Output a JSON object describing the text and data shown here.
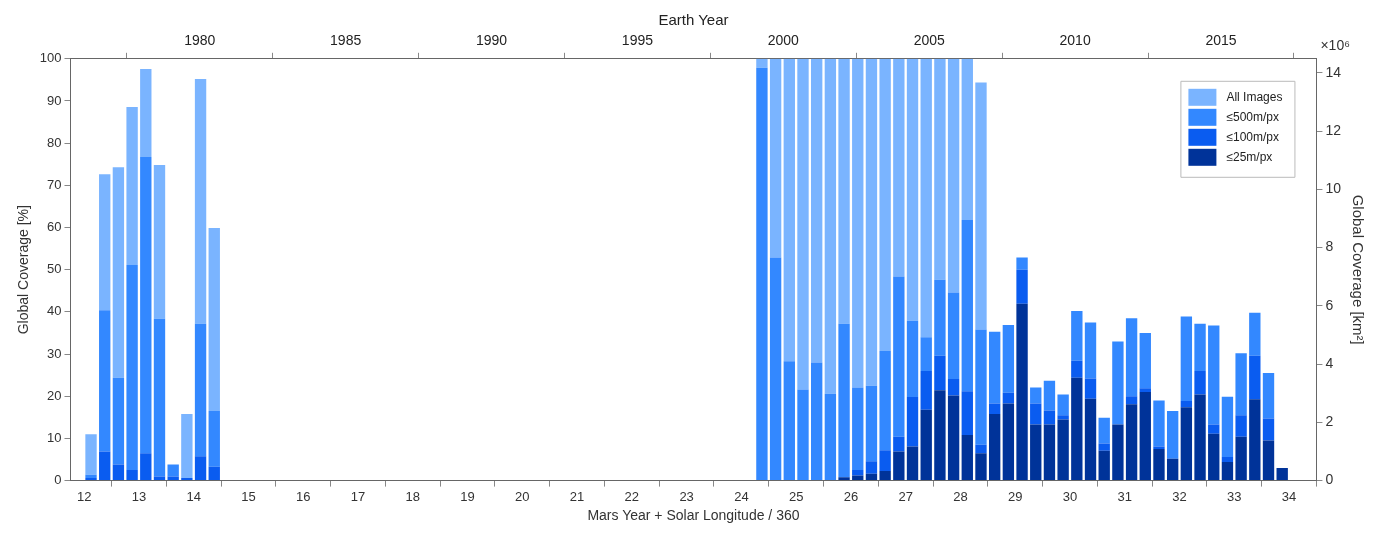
{
  "chart_data": {
    "type": "bar",
    "xlabel": "Mars Year + Solar Longitude / 360",
    "ylabel": "Global Coverage [%]",
    "y2label": "Global Coverage [km²]",
    "x2label": "Earth Year",
    "annotations": [
      "×10⁶"
    ],
    "x": [
      12.125,
      12.375,
      12.625,
      12.875,
      13.125,
      13.375,
      13.625,
      13.875,
      14.125,
      14.375,
      24.375,
      24.625,
      24.875,
      25.125,
      25.375,
      25.625,
      25.875,
      26.125,
      26.375,
      26.625,
      26.875,
      27.125,
      27.375,
      27.625,
      27.875,
      28.125,
      28.375,
      28.625,
      28.875,
      29.125,
      29.375,
      29.625,
      29.875,
      30.125,
      30.375,
      30.625,
      30.875,
      31.125,
      31.375,
      31.625,
      31.875,
      32.125,
      32.375,
      32.625,
      32.875,
      33.125,
      33.375,
      33.625,
      33.875
    ],
    "series": [
      {
        "name": "≤25m/px",
        "color": "#003399",
        "values": [
          null,
          null,
          null,
          null,
          null,
          null,
          null,
          null,
          null,
          null,
          null,
          null,
          null,
          null,
          null,
          null,
          0.8,
          1.2,
          1.6,
          2.3,
          6.9,
          8.1,
          16.8,
          21.4,
          20.2,
          10.8,
          6.5,
          15.8,
          18.3,
          41.9,
          13.3,
          13.3,
          14.5,
          24.4,
          19.4,
          7.1,
          13.3,
          18.1,
          21.0,
          7.5,
          5.2,
          17.4,
          20.4,
          11.1,
          4.4,
          10.4,
          19.3,
          9.5,
          3.0
        ]
      },
      {
        "name": "≤100m/px",
        "color": "#0a5cf0",
        "values": [
          0.6,
          6.9,
          3.8,
          2.5,
          6.5,
          1.0,
          1.0,
          0.6,
          5.8,
          3.3,
          null,
          null,
          null,
          null,
          null,
          null,
          null,
          1.3,
          3.0,
          4.9,
          3.5,
          11.7,
          9.2,
          8.2,
          3.9,
          10.4,
          2.0,
          2.5,
          2.5,
          8.1,
          5.0,
          3.3,
          1.0,
          4.0,
          4.8,
          1.7,
          null,
          1.9,
          0.9,
          0.6,
          null,
          1.5,
          5.6,
          2.2,
          1.2,
          5.1,
          10.3,
          5.2,
          null
        ]
      },
      {
        "name": "≤500m/px",
        "color": "#3388ff",
        "values": [
          0.8,
          33.5,
          20.6,
          48.6,
          70.2,
          37.4,
          2.8,
          null,
          31.4,
          13.2,
          97.9,
          52.9,
          28.3,
          21.6,
          28.0,
          20.6,
          36.4,
          19.6,
          17.9,
          23.5,
          38.0,
          18.1,
          8.0,
          18.0,
          20.5,
          40.6,
          27.3,
          17.0,
          16.1,
          2.9,
          3.8,
          7.1,
          4.9,
          11.8,
          13.3,
          6.1,
          19.7,
          18.5,
          13.1,
          10.9,
          11.3,
          20.0,
          11.2,
          23.5,
          14.3,
          14.7,
          10.2,
          10.8,
          null
        ]
      },
      {
        "name": "All Images",
        "color": "#7ab4ff",
        "values": [
          9.6,
          32.2,
          49.9,
          37.5,
          20.9,
          36.4,
          null,
          15.2,
          58.0,
          43.4,
          2.1,
          47.1,
          71.7,
          78.4,
          72.0,
          79.4,
          62.8,
          77.9,
          77.5,
          69.3,
          51.6,
          62.1,
          66.0,
          52.4,
          55.4,
          38.2,
          58.6,
          null,
          null,
          null,
          null,
          null,
          null,
          null,
          null,
          null,
          null,
          null,
          null,
          null,
          null,
          null,
          null,
          null,
          null,
          null,
          null,
          null,
          null
        ]
      }
    ],
    "stacked": true,
    "xlim": [
      11.75,
      34.5
    ],
    "xticks": [
      12,
      13,
      14,
      15,
      16,
      17,
      18,
      19,
      20,
      21,
      22,
      23,
      24,
      25,
      26,
      27,
      28,
      29,
      30,
      31,
      32,
      33,
      34
    ],
    "ylim": [
      0,
      100
    ],
    "yticks": [
      0,
      10,
      20,
      30,
      40,
      50,
      60,
      70,
      80,
      90,
      100
    ],
    "y2lim": [
      0,
      14.48
    ],
    "y2ticks": [
      0,
      2,
      4,
      6,
      8,
      10,
      12,
      14
    ],
    "x2lim": [
      1975.57,
      2018.27
    ],
    "x2ticks": [
      1980,
      1985,
      1990,
      1995,
      2000,
      2005,
      2010,
      2015
    ],
    "grid": false,
    "legend": "top right"
  }
}
